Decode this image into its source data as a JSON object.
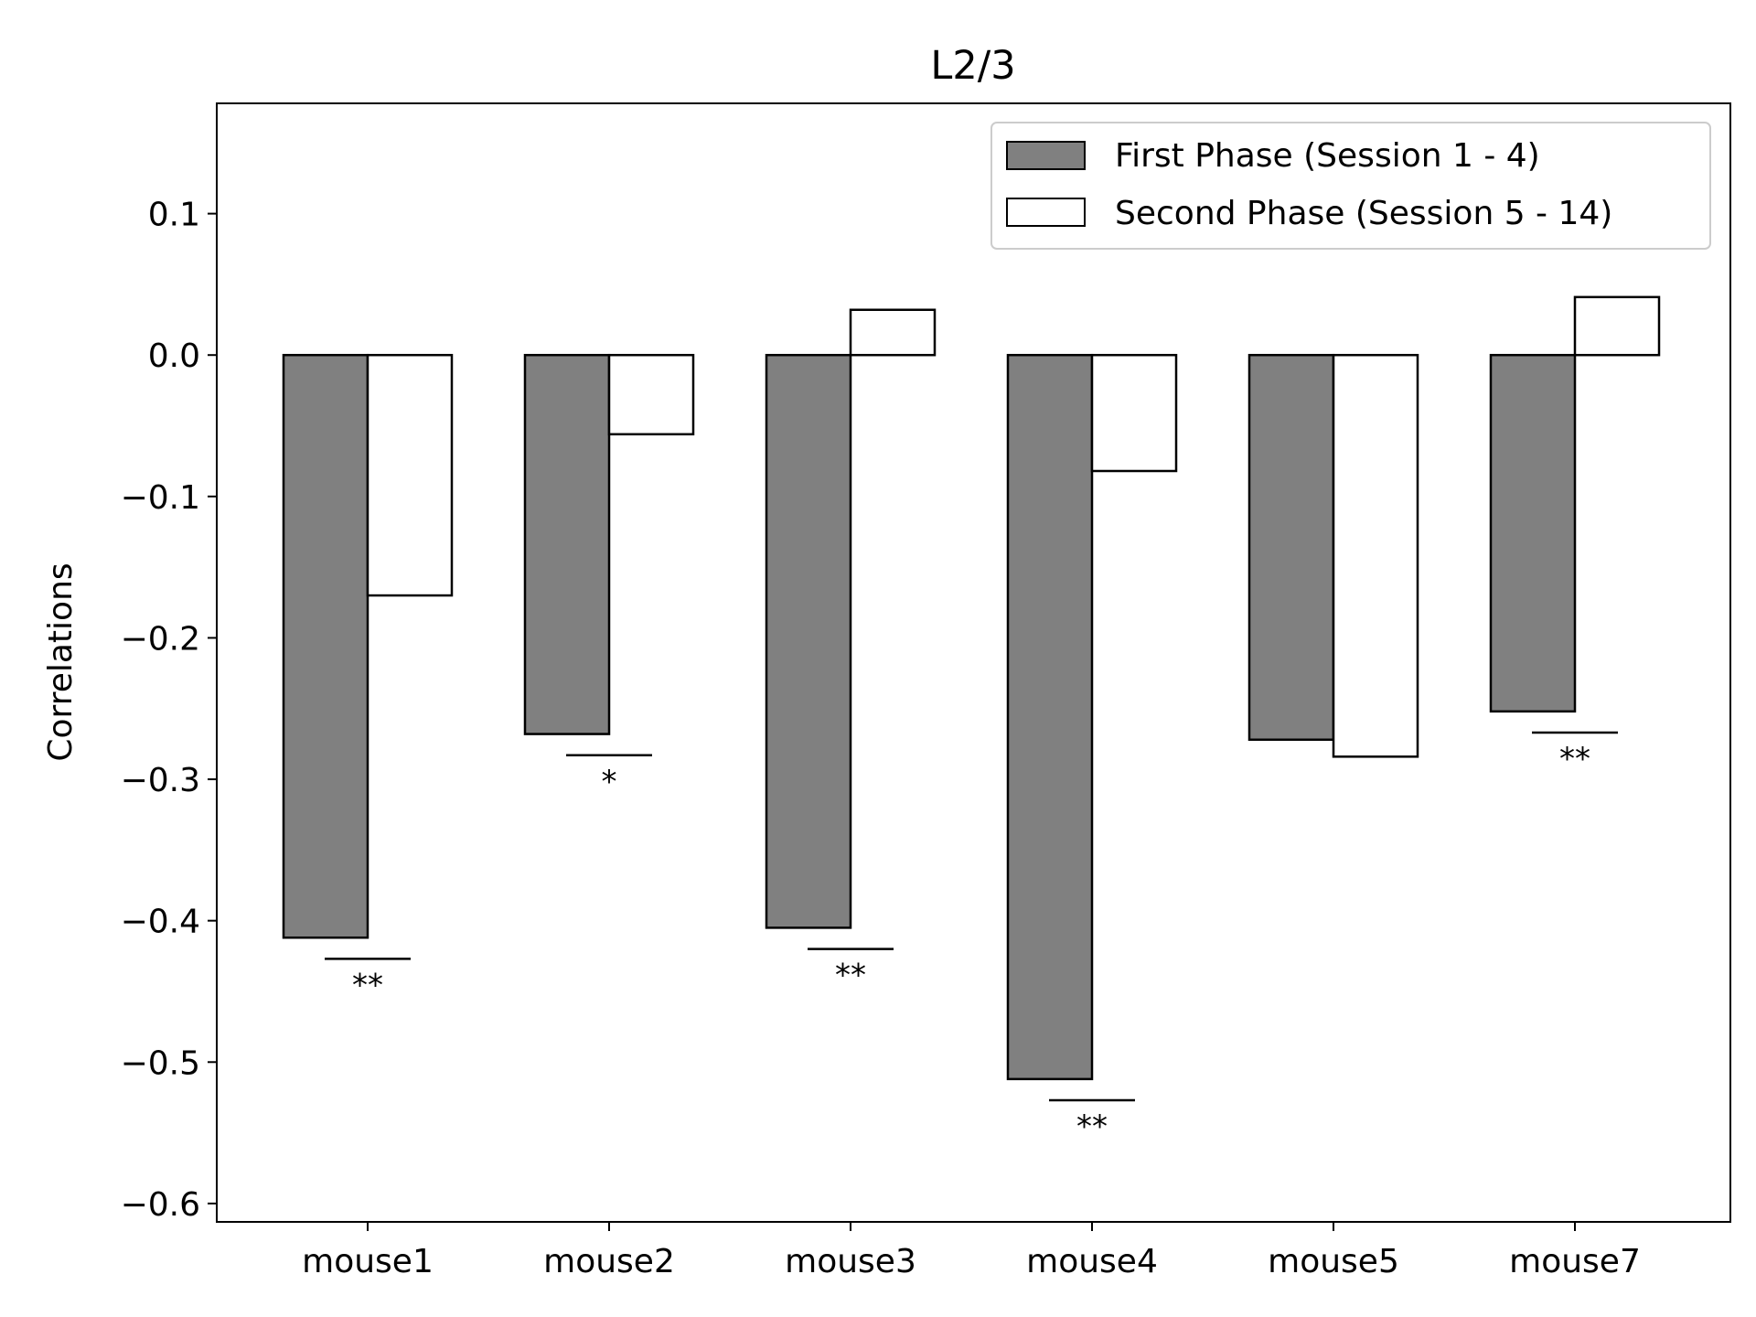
{
  "chart_data": {
    "type": "bar",
    "title": "L2/3",
    "xlabel": "",
    "ylabel": "Correlations",
    "categories": [
      "mouse1",
      "mouse2",
      "mouse3",
      "mouse4",
      "mouse5",
      "mouse7"
    ],
    "series": [
      {
        "name": "First Phase (Session 1 - 4)",
        "color": "#808080",
        "values": [
          -0.412,
          -0.268,
          -0.405,
          -0.512,
          -0.272,
          -0.252
        ]
      },
      {
        "name": "Second Phase (Session 5 - 14)",
        "color": "#ffffff",
        "values": [
          -0.17,
          -0.056,
          0.032,
          -0.082,
          -0.284,
          0.041
        ]
      }
    ],
    "ylim": [
      -0.613,
      0.178
    ],
    "yticks": [
      0.1,
      0.0,
      -0.1,
      -0.2,
      -0.3,
      -0.4,
      -0.5,
      -0.6
    ],
    "ytick_labels": [
      "0.1",
      "0.0",
      "−0.1",
      "−0.2",
      "−0.3",
      "−0.4",
      "−0.5",
      "−0.6"
    ],
    "significance": [
      {
        "category": "mouse1",
        "label": "**",
        "y": -0.427
      },
      {
        "category": "mouse2",
        "label": "*",
        "y": -0.283
      },
      {
        "category": "mouse3",
        "label": "**",
        "y": -0.42
      },
      {
        "category": "mouse4",
        "label": "**",
        "y": -0.527
      },
      {
        "category": "mouse7",
        "label": "**",
        "y": -0.267
      }
    ],
    "legend_position": "top-right",
    "grid": false
  }
}
